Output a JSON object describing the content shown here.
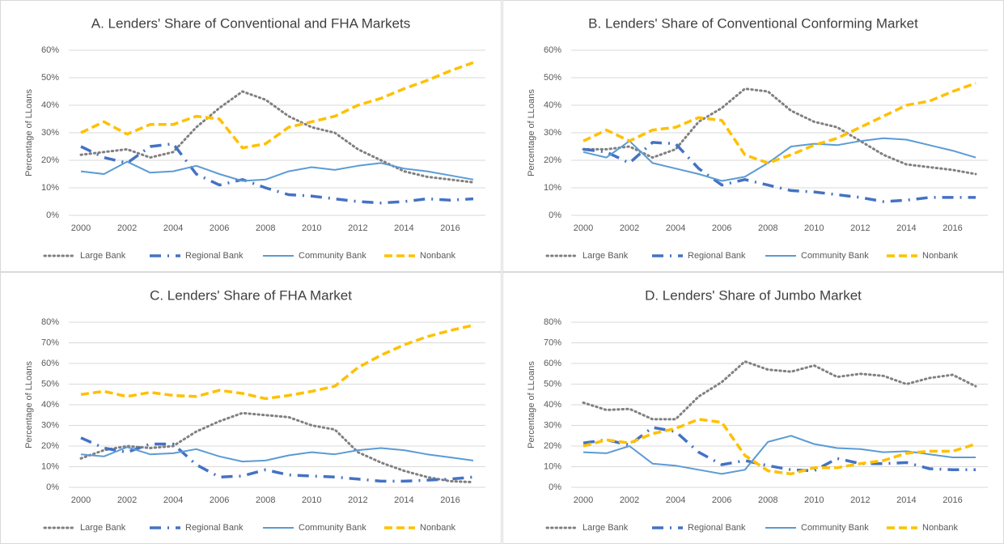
{
  "chart_data": [
    {
      "type": "line",
      "title": "A. Lenders' Share of Conventional and FHA Markets",
      "ylabel": "Percentage of LLoans",
      "categories": [
        "2000",
        null,
        "2002",
        null,
        "2004",
        null,
        "2006",
        null,
        "2008",
        null,
        "2010",
        null,
        "2012",
        null,
        "2014",
        null,
        "2016",
        null
      ],
      "ylim": [
        0,
        60
      ],
      "yticks": [
        {
          "value": 0,
          "label": "0%"
        },
        {
          "value": 10,
          "label": "10%"
        },
        {
          "value": 20,
          "label": "20%"
        },
        {
          "value": 30,
          "label": "30%"
        },
        {
          "value": 40,
          "label": "40%"
        },
        {
          "value": 50,
          "label": "50%"
        },
        {
          "value": 60,
          "label": "60%"
        }
      ],
      "grid": true,
      "legend": "bottom",
      "series": [
        {
          "name": "Large Bank",
          "color": "#808080",
          "values": [
            22,
            23,
            24,
            21,
            23,
            32,
            39,
            45,
            42,
            36,
            32,
            30,
            24,
            20,
            16,
            14,
            13,
            12
          ]
        },
        {
          "name": "Regional Bank",
          "color": "#4472c4",
          "values": [
            25,
            21,
            19,
            25,
            26,
            15,
            11,
            13,
            10,
            7.5,
            7,
            6,
            5,
            4.5,
            5,
            6,
            5.5,
            6
          ]
        },
        {
          "name": "Community Bank",
          "color": "#5b9bd5",
          "values": [
            16,
            15,
            19.5,
            15.5,
            16,
            18,
            15,
            12.5,
            13,
            16,
            17.5,
            16.5,
            18,
            19,
            17,
            16,
            14.5,
            13
          ]
        },
        {
          "name": "Nonbank",
          "color": "#ffc000",
          "values": [
            30,
            34,
            29.5,
            33,
            33,
            36,
            35,
            24.5,
            26,
            32,
            34,
            36,
            40,
            42.5,
            46,
            49,
            52.5,
            55.5
          ]
        }
      ]
    },
    {
      "type": "line",
      "title": "B. Lenders' Share of Conventional Conforming Market",
      "ylabel": "Percentage of LLoans",
      "categories": [
        "2000",
        null,
        "2002",
        null,
        "2004",
        null,
        "2006",
        null,
        "2008",
        null,
        "2010",
        null,
        "2012",
        null,
        "2014",
        null,
        "2016",
        null
      ],
      "ylim": [
        0,
        60
      ],
      "yticks": [
        {
          "value": 0,
          "label": "0%"
        },
        {
          "value": 10,
          "label": "10%"
        },
        {
          "value": 20,
          "label": "20%"
        },
        {
          "value": 30,
          "label": "30%"
        },
        {
          "value": 40,
          "label": "40%"
        },
        {
          "value": 50,
          "label": "50%"
        },
        {
          "value": 60,
          "label": "60%"
        }
      ],
      "grid": true,
      "legend": "bottom",
      "series": [
        {
          "name": "Large Bank",
          "color": "#808080",
          "values": [
            24,
            24,
            25,
            21,
            24,
            34,
            39,
            46,
            45,
            38,
            34,
            32,
            27,
            22,
            18.5,
            17.5,
            16.5,
            15
          ]
        },
        {
          "name": "Regional Bank",
          "color": "#4472c4",
          "values": [
            24,
            23,
            19,
            26.5,
            26,
            17,
            11,
            13,
            11,
            9,
            8.5,
            7.5,
            6.5,
            5,
            5.5,
            6.5,
            6.5,
            6.5
          ]
        },
        {
          "name": "Community Bank",
          "color": "#5b9bd5",
          "values": [
            23,
            21,
            27,
            19,
            17,
            15,
            12.5,
            14,
            19,
            25,
            26,
            25.5,
            27,
            28,
            27.5,
            25.5,
            23.5,
            21
          ]
        },
        {
          "name": "Nonbank",
          "color": "#ffc000",
          "values": [
            27,
            31,
            27,
            31,
            32,
            35.5,
            34.5,
            22,
            19,
            22,
            25.5,
            28,
            32,
            36,
            40,
            41.5,
            45,
            48
          ]
        }
      ]
    },
    {
      "type": "line",
      "title": "C. Lenders' Share of FHA Market",
      "ylabel": "Percentage of LLoans",
      "categories": [
        "2000",
        null,
        "2002",
        null,
        "2004",
        null,
        "2006",
        null,
        "2008",
        null,
        "2010",
        null,
        "2012",
        null,
        "2014",
        null,
        "2016",
        null
      ],
      "ylim": [
        0,
        80
      ],
      "yticks": [
        {
          "value": 0,
          "label": "0%"
        },
        {
          "value": 10,
          "label": "10%"
        },
        {
          "value": 20,
          "label": "20%"
        },
        {
          "value": 30,
          "label": "30%"
        },
        {
          "value": 40,
          "label": "40%"
        },
        {
          "value": 50,
          "label": "50%"
        },
        {
          "value": 60,
          "label": "60%"
        },
        {
          "value": 70,
          "label": "70%"
        },
        {
          "value": 80,
          "label": "80%"
        }
      ],
      "grid": true,
      "legend": "bottom",
      "series": [
        {
          "name": "Large Bank",
          "color": "#808080",
          "values": [
            14,
            18,
            20,
            19,
            20,
            27,
            32,
            36,
            35,
            34,
            30,
            28,
            17,
            12,
            8,
            5,
            3,
            2.5
          ]
        },
        {
          "name": "Regional Bank",
          "color": "#4472c4",
          "values": [
            24,
            19,
            17,
            21,
            21,
            11,
            5,
            5.5,
            8.5,
            6,
            5.5,
            5,
            4,
            3,
            3,
            3.5,
            4,
            5
          ]
        },
        {
          "name": "Community Bank",
          "color": "#5b9bd5",
          "values": [
            16,
            15,
            19.5,
            16,
            16.5,
            18.5,
            15,
            12.5,
            13,
            15.5,
            17,
            16,
            18,
            19,
            18,
            16,
            14.5,
            13
          ]
        },
        {
          "name": "Nonbank",
          "color": "#ffc000",
          "values": [
            45,
            46.5,
            44,
            46,
            44.5,
            44,
            47,
            45.5,
            43,
            44.5,
            46.5,
            49,
            58,
            64,
            69,
            73,
            76,
            78.5
          ]
        }
      ]
    },
    {
      "type": "line",
      "title": "D. Lenders' Share of Jumbo Market",
      "ylabel": "Percentage of LLoans",
      "categories": [
        "2000",
        null,
        "2002",
        null,
        "2004",
        null,
        "2006",
        null,
        "2008",
        null,
        "2010",
        null,
        "2012",
        null,
        "2014",
        null,
        "2016",
        null
      ],
      "ylim": [
        0,
        80
      ],
      "yticks": [
        {
          "value": 0,
          "label": "0%"
        },
        {
          "value": 10,
          "label": "10%"
        },
        {
          "value": 20,
          "label": "20%"
        },
        {
          "value": 30,
          "label": "30%"
        },
        {
          "value": 40,
          "label": "40%"
        },
        {
          "value": 50,
          "label": "50%"
        },
        {
          "value": 60,
          "label": "60%"
        },
        {
          "value": 70,
          "label": "70%"
        },
        {
          "value": 80,
          "label": "80%"
        }
      ],
      "grid": true,
      "legend": "bottom",
      "series": [
        {
          "name": "Large Bank",
          "color": "#808080",
          "values": [
            41,
            37.5,
            38,
            33,
            33,
            44,
            51,
            61,
            57,
            56,
            59,
            53.5,
            55,
            54,
            50,
            53,
            54.5,
            49
          ]
        },
        {
          "name": "Regional Bank",
          "color": "#4472c4",
          "values": [
            21.5,
            23,
            20.5,
            29,
            27,
            17,
            11,
            13,
            10.5,
            8.5,
            8,
            14,
            11.5,
            11.5,
            12,
            9,
            8.5,
            8.5
          ]
        },
        {
          "name": "Community Bank",
          "color": "#5b9bd5",
          "values": [
            17,
            16.5,
            20,
            11.5,
            10.5,
            8.5,
            6.5,
            8.5,
            22,
            25,
            21,
            19,
            18.5,
            17,
            17.5,
            16,
            14.5,
            14.5
          ]
        },
        {
          "name": "Nonbank",
          "color": "#ffc000",
          "values": [
            20,
            23,
            21.5,
            26,
            28.5,
            33,
            31.5,
            15.5,
            8,
            6.5,
            9.5,
            9.5,
            11.5,
            13,
            16.5,
            17.5,
            17.5,
            21
          ]
        }
      ]
    }
  ]
}
